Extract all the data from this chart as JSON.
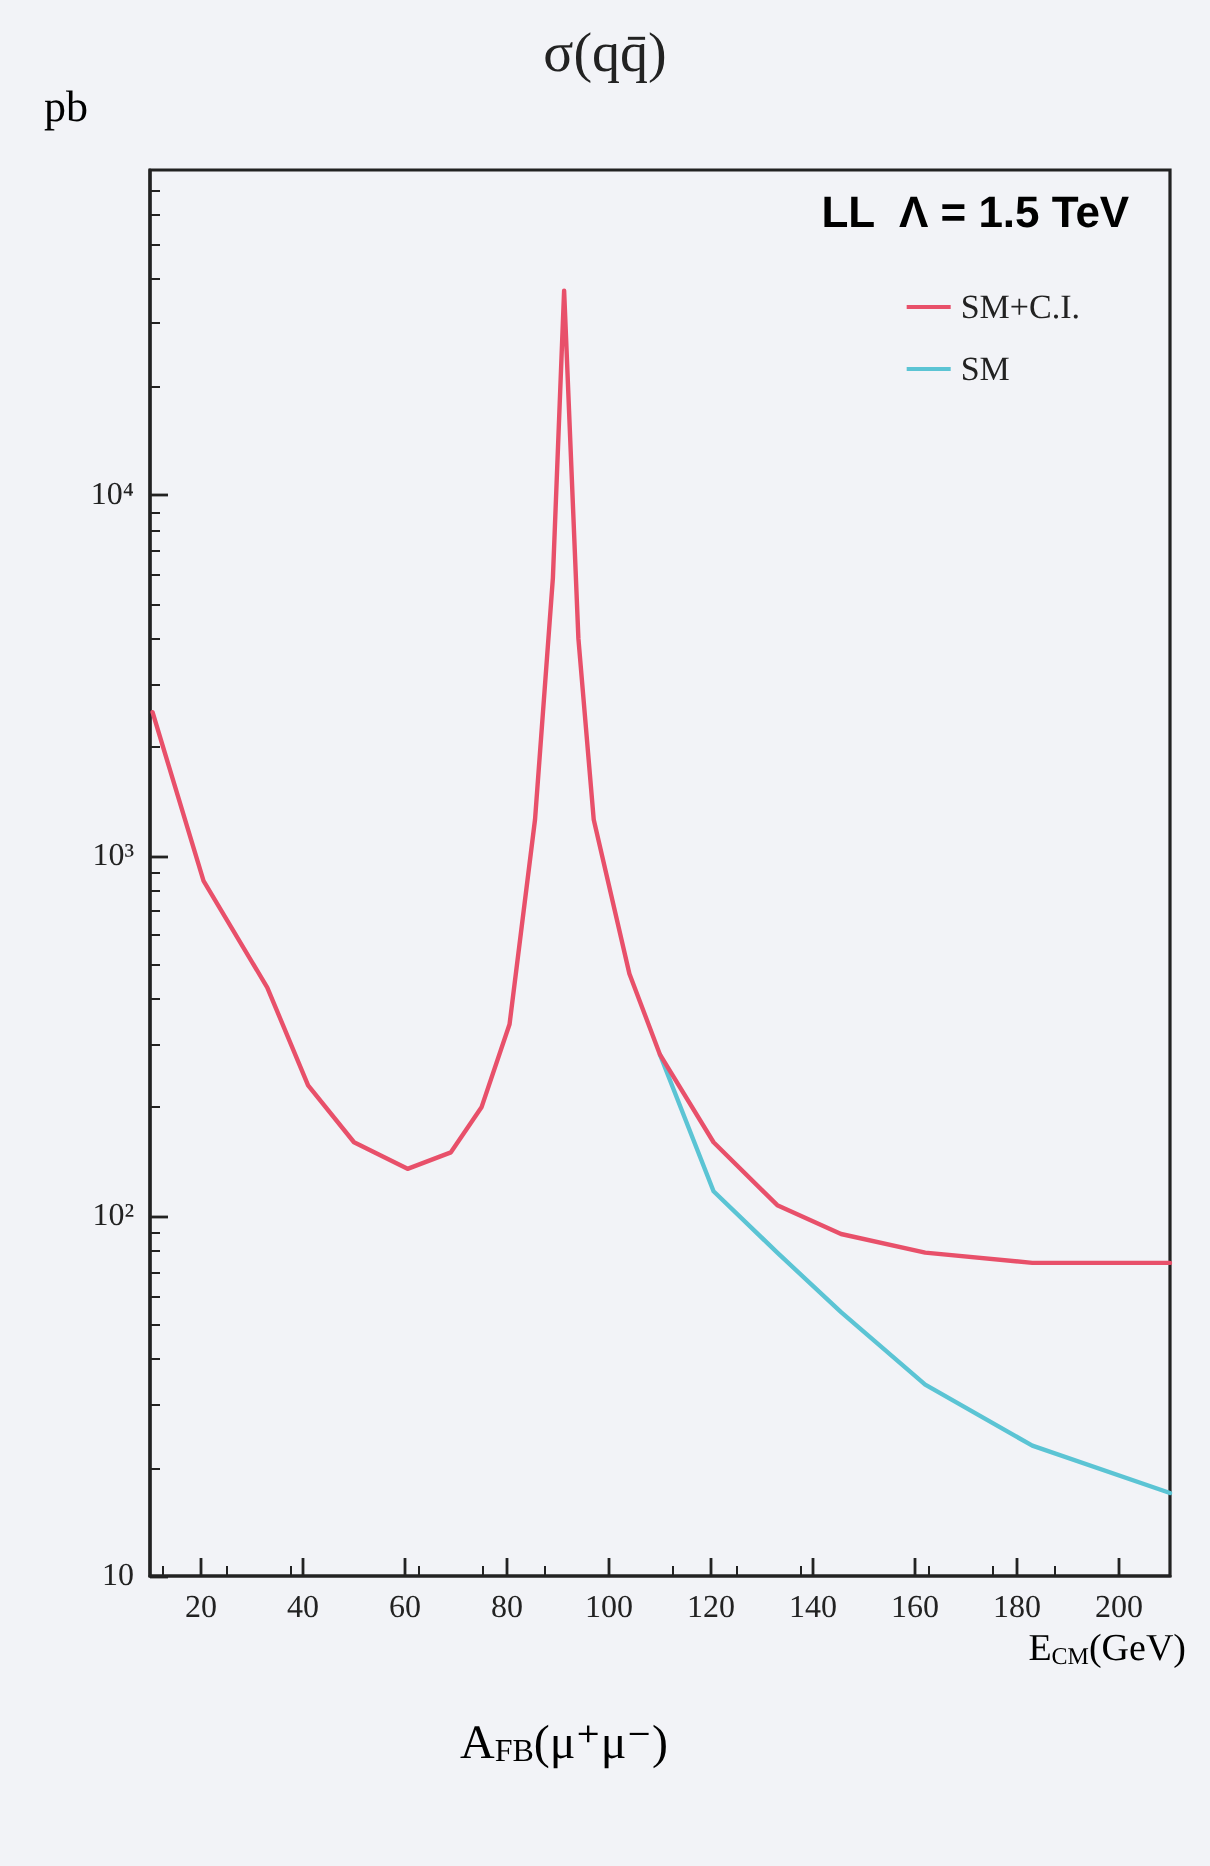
{
  "chart_data": {
    "type": "line",
    "title": "σ(qq̄)",
    "xlabel": "E$_{CM}$(GeV)",
    "ylabel": "pb",
    "annotations": [
      "LL  Λ = 1.5 TeV",
      "A$_{FB}$(μ⁺μ⁻)"
    ],
    "x": [
      10.5,
      20.5,
      33,
      41,
      50,
      60.5,
      69,
      75,
      80.5,
      85.5,
      89,
      91.2,
      94,
      97,
      104,
      110,
      120.5,
      133,
      145.5,
      162,
      183,
      210
    ],
    "series": [
      {
        "name": "SM+C.I.",
        "color": "#e8506a",
        "values": [
          2500,
          850,
          430,
          230,
          160,
          135,
          150,
          200,
          340,
          1260,
          5900,
          37000,
          4000,
          1260,
          470,
          280,
          160,
          107,
          89,
          79,
          74,
          74
        ]
      },
      {
        "name": "SM",
        "color": "#5bc4d4",
        "values": [
          null,
          null,
          null,
          null,
          null,
          null,
          null,
          null,
          null,
          null,
          null,
          null,
          null,
          null,
          null,
          280,
          117,
          79,
          54,
          34,
          23,
          17
        ]
      }
    ],
    "xlim": [
      10,
      210
    ],
    "xticks": [
      20,
      40,
      60,
      80,
      100,
      120,
      140,
      160,
      180,
      200
    ],
    "ylim": [
      10,
      80000
    ],
    "yticks": [
      10,
      {
        "value": 100,
        "label": "10²"
      },
      {
        "value": 1000,
        "label": "10³"
      },
      {
        "value": 10000,
        "label": "10⁴"
      }
    ],
    "log": "y",
    "legend": "top right",
    "marker": "none",
    "line_style": "solid",
    "grid": false
  }
}
